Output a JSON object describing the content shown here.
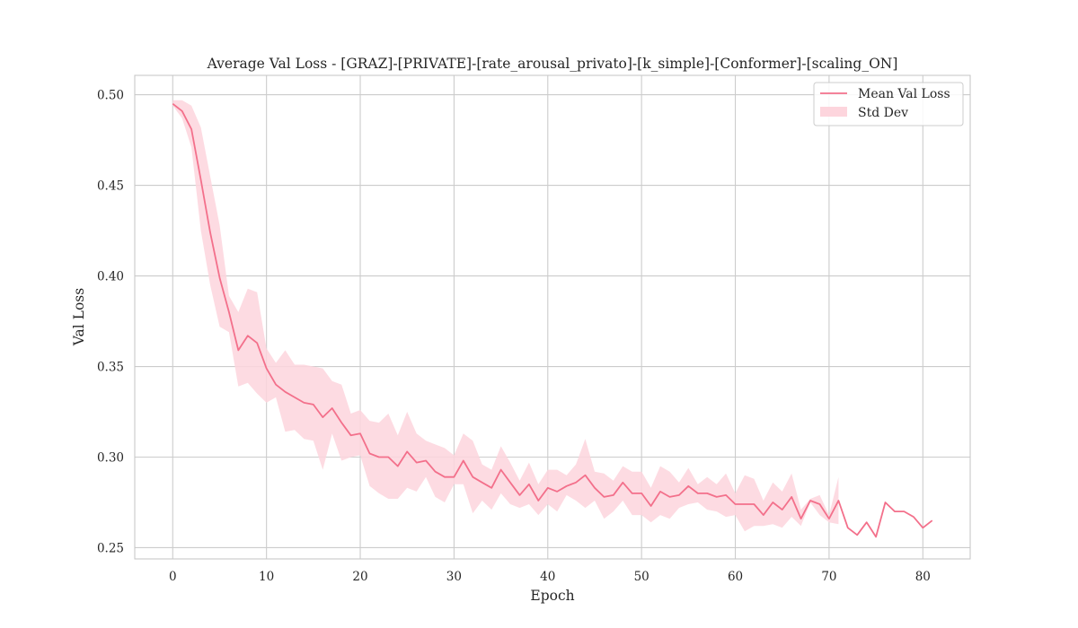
{
  "chart_data": {
    "type": "line",
    "title": "Average Val Loss - [GRAZ]-[PRIVATE]-[rate_arousal_privato]-[k_simple]-[Conformer]-[scaling_ON]",
    "xlabel": "Epoch",
    "ylabel": "Val Loss",
    "xlim": [
      -4.05,
      85.05
    ],
    "ylim": [
      0.2438,
      0.5107
    ],
    "xticks": [
      0,
      10,
      20,
      30,
      40,
      50,
      60,
      70,
      80
    ],
    "yticks": [
      0.25,
      0.3,
      0.35,
      0.4,
      0.45,
      0.5
    ],
    "ytick_labels": [
      "0.25",
      "0.30",
      "0.35",
      "0.40",
      "0.45",
      "0.50"
    ],
    "grid": true,
    "legend_position": "top-right",
    "colors": {
      "mean": "#f3708b",
      "std": "#fdd5dd"
    },
    "series": [
      {
        "name": "Mean Val Loss",
        "x": [
          0,
          1,
          2,
          3,
          4,
          5,
          6,
          7,
          8,
          9,
          10,
          11,
          12,
          13,
          14,
          15,
          16,
          17,
          18,
          19,
          20,
          21,
          22,
          23,
          24,
          25,
          26,
          27,
          28,
          29,
          30,
          31,
          32,
          33,
          34,
          35,
          36,
          37,
          38,
          39,
          40,
          41,
          42,
          43,
          44,
          45,
          46,
          47,
          48,
          49,
          50,
          51,
          52,
          53,
          54,
          55,
          56,
          57,
          58,
          59,
          60,
          61,
          62,
          63,
          64,
          65,
          66,
          67,
          68,
          69,
          70,
          71,
          72,
          73,
          74,
          75,
          76,
          77,
          78,
          79,
          80,
          81
        ],
        "y": [
          0.495,
          0.491,
          0.481,
          0.453,
          0.424,
          0.399,
          0.38,
          0.359,
          0.367,
          0.363,
          0.349,
          0.34,
          0.336,
          0.333,
          0.33,
          0.329,
          0.322,
          0.327,
          0.319,
          0.312,
          0.313,
          0.302,
          0.3,
          0.3,
          0.295,
          0.303,
          0.297,
          0.298,
          0.292,
          0.289,
          0.289,
          0.298,
          0.289,
          0.286,
          0.283,
          0.293,
          0.286,
          0.279,
          0.285,
          0.276,
          0.283,
          0.281,
          0.284,
          0.286,
          0.29,
          0.283,
          0.278,
          0.279,
          0.286,
          0.28,
          0.28,
          0.273,
          0.281,
          0.278,
          0.279,
          0.284,
          0.28,
          0.28,
          0.278,
          0.279,
          0.274,
          0.274,
          0.274,
          0.268,
          0.275,
          0.271,
          0.278,
          0.266,
          0.276,
          0.274,
          0.266,
          0.276,
          0.261,
          0.257,
          0.264,
          0.256,
          0.275,
          0.27,
          0.27,
          0.267,
          0.261,
          0.265
        ]
      },
      {
        "name": "Std Dev",
        "x": [
          0,
          1,
          2,
          3,
          4,
          5,
          6,
          7,
          8,
          9,
          10,
          11,
          12,
          13,
          14,
          15,
          16,
          17,
          18,
          19,
          20,
          21,
          22,
          23,
          24,
          25,
          26,
          27,
          28,
          29,
          30,
          31,
          32,
          33,
          34,
          35,
          36,
          37,
          38,
          39,
          40,
          41,
          42,
          43,
          44,
          45,
          46,
          47,
          48,
          49,
          50,
          51,
          52,
          53,
          54,
          55,
          56,
          57,
          58,
          59,
          60,
          61,
          62,
          63,
          64,
          65,
          66,
          67,
          68,
          69,
          70,
          71
        ],
        "upper": [
          0.497,
          0.497,
          0.494,
          0.482,
          0.455,
          0.428,
          0.389,
          0.38,
          0.393,
          0.391,
          0.36,
          0.352,
          0.359,
          0.351,
          0.351,
          0.35,
          0.349,
          0.342,
          0.34,
          0.324,
          0.326,
          0.32,
          0.319,
          0.324,
          0.312,
          0.325,
          0.313,
          0.309,
          0.307,
          0.305,
          0.301,
          0.313,
          0.309,
          0.296,
          0.293,
          0.306,
          0.297,
          0.287,
          0.297,
          0.285,
          0.293,
          0.293,
          0.29,
          0.296,
          0.31,
          0.292,
          0.291,
          0.287,
          0.295,
          0.292,
          0.292,
          0.283,
          0.295,
          0.292,
          0.286,
          0.294,
          0.285,
          0.289,
          0.285,
          0.291,
          0.28,
          0.29,
          0.288,
          0.276,
          0.286,
          0.281,
          0.291,
          0.271,
          0.277,
          0.279,
          0.268,
          0.289
        ],
        "lower": [
          0.494,
          0.487,
          0.471,
          0.425,
          0.395,
          0.372,
          0.369,
          0.339,
          0.341,
          0.335,
          0.33,
          0.333,
          0.314,
          0.315,
          0.31,
          0.309,
          0.293,
          0.313,
          0.298,
          0.3,
          0.301,
          0.284,
          0.28,
          0.277,
          0.277,
          0.283,
          0.281,
          0.289,
          0.278,
          0.275,
          0.285,
          0.285,
          0.269,
          0.276,
          0.271,
          0.28,
          0.274,
          0.272,
          0.274,
          0.268,
          0.274,
          0.27,
          0.279,
          0.276,
          0.272,
          0.276,
          0.266,
          0.27,
          0.276,
          0.268,
          0.268,
          0.264,
          0.268,
          0.266,
          0.272,
          0.274,
          0.275,
          0.271,
          0.27,
          0.267,
          0.268,
          0.259,
          0.262,
          0.262,
          0.263,
          0.261,
          0.267,
          0.262,
          0.275,
          0.268,
          0.264,
          0.263
        ]
      }
    ]
  }
}
